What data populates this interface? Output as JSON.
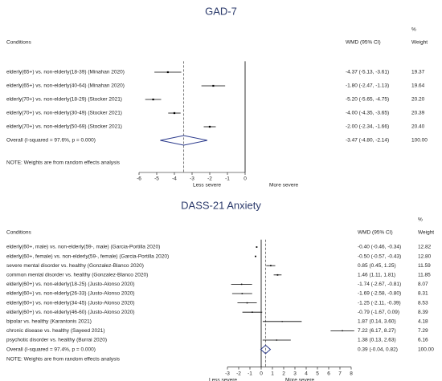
{
  "chart_data": [
    {
      "type": "forest",
      "title": "GAD-7",
      "col_conditions": "Conditions",
      "col_effect": "WMD (95% CI)",
      "col_weight_top": "%",
      "col_weight": "Weight",
      "categories": [
        "elderly(65+) vs. non-elderly(18-39) (Minahan 2020)",
        "elderly(65+) vs. non-elderly(40-64) (Minahan 2020)",
        "elderly(70+) vs. non-elderly(18-29) (Stocker 2021)",
        "elderly(70+) vs. non-elderly(30-49) (Stocker 2021)",
        "elderly(70+) vs. non-elderly(50-69) (Stocker 2021)"
      ],
      "values": [
        -4.37,
        -1.8,
        -5.2,
        -4.0,
        -2.0
      ],
      "lower": [
        -5.13,
        -2.47,
        -5.65,
        -4.35,
        -2.34
      ],
      "upper": [
        -3.61,
        -1.13,
        -4.75,
        -3.65,
        -1.66
      ],
      "value_labels": [
        "-4.37 (-5.13, -3.61)",
        "-1.80 (-2.47, -1.13)",
        "-5.20 (-5.65, -4.75)",
        "-4.00 (-4.35, -3.65)",
        "-2.00 (-2.34, -1.66)"
      ],
      "weights": [
        19.37,
        19.64,
        20.2,
        20.39,
        20.4
      ],
      "weight_labels": [
        "19.37",
        "19.64",
        "20.20",
        "20.39",
        "20.40"
      ],
      "overall": {
        "label": "Overall  (I-squared = 97.6%, p = 0.000)",
        "value": -3.47,
        "lower": -4.8,
        "upper": -2.14,
        "value_label": "-3.47 (-4.80, -2.14)",
        "weight": 100,
        "weight_label": "100.00"
      },
      "note": "NOTE: Weights are from random effects analysis",
      "xlim": [
        -6.5,
        5
      ],
      "xticks": [
        -6,
        -5,
        -4,
        -3,
        -2,
        -1,
        0
      ],
      "left_label": "Less severe",
      "right_label": "More severe",
      "color": "#2b3a8c"
    },
    {
      "type": "forest",
      "title": "DASS-21 Anxiety",
      "col_conditions": "Conditions",
      "col_effect": "WMD (95% CI)",
      "col_weight_top": "%",
      "col_weight": "Weight",
      "categories": [
        "elderly(60+, male) vs. non-elderly(59-, male) (Garcia-Portilla 2020)",
        "elderly(60+, female) vs. non-elderly(59-, female) (Garcia-Portilla 2020)",
        "severe mental disorder vs. healthy (Gonzalez-Blanco 2020)",
        "common mental disorder vs. healthy (Gonzalez-Blanco 2020)",
        "elderly(60+) vs. non-elderly(18-25) (Justo-Alonso 2020)",
        "elderly(60+) vs. non-elderly(26-33) (Justo-Alonso 2020)",
        "elderly(60+) vs. non-elderly(34-45) (Justo-Alonso 2020)",
        "elderly(60+) vs. non-elderly(46-60) (Justo-Alonso 2020)",
        "bipolar vs. healthy (Karantonis 2021)",
        "chronic disease vs. healthy (Sayeed 2021)",
        "psychotic disorder vs. healthy (Burrai 2020)"
      ],
      "values": [
        -0.4,
        -0.5,
        0.85,
        1.46,
        -1.74,
        -1.69,
        -1.25,
        -0.79,
        1.87,
        7.22,
        1.38
      ],
      "lower": [
        -0.46,
        -0.57,
        0.45,
        1.11,
        -2.67,
        -2.58,
        -2.11,
        -1.67,
        0.14,
        6.17,
        0.13
      ],
      "upper": [
        -0.34,
        -0.43,
        1.25,
        1.81,
        -0.81,
        -0.8,
        -0.39,
        0.09,
        3.6,
        8.27,
        2.63
      ],
      "value_labels": [
        "-0.40 (-0.46, -0.34)",
        "-0.50 (-0.57, -0.43)",
        "0.85 (0.45, 1.25)",
        "1.46 (1.11, 1.81)",
        "-1.74 (-2.67, -0.81)",
        "-1.69 (-2.58, -0.80)",
        "-1.25 (-2.11, -0.39)",
        "-0.79 (-1.67, 0.09)",
        "1.87 (0.14, 3.60)",
        "7.22 (6.17, 8.27)",
        "1.38 (0.13, 2.63)"
      ],
      "weights": [
        12.82,
        12.8,
        11.59,
        11.85,
        8.07,
        8.31,
        8.53,
        8.39,
        4.18,
        7.29,
        6.16
      ],
      "weight_labels": [
        "12.82",
        "12.80",
        "11.59",
        "11.85",
        "8.07",
        "8.31",
        "8.53",
        "8.39",
        "4.18",
        "7.29",
        "6.16"
      ],
      "overall": {
        "label": "Overall  (I-squared = 97.4%, p = 0.000)",
        "value": 0.39,
        "lower": -0.04,
        "upper": 0.82,
        "value_label": "0.39 (-0.04, 0.82)",
        "weight": 100,
        "weight_label": "100.00"
      },
      "note": "NOTE: Weights are from random effects analysis",
      "xlim": [
        -5,
        8.5
      ],
      "xticks": [
        -3,
        -2,
        -1,
        0,
        1,
        2,
        3,
        4,
        5,
        6,
        7,
        8
      ],
      "left_label": "Less severe",
      "right_label": "More severe",
      "color": "#2b3a8c"
    }
  ]
}
